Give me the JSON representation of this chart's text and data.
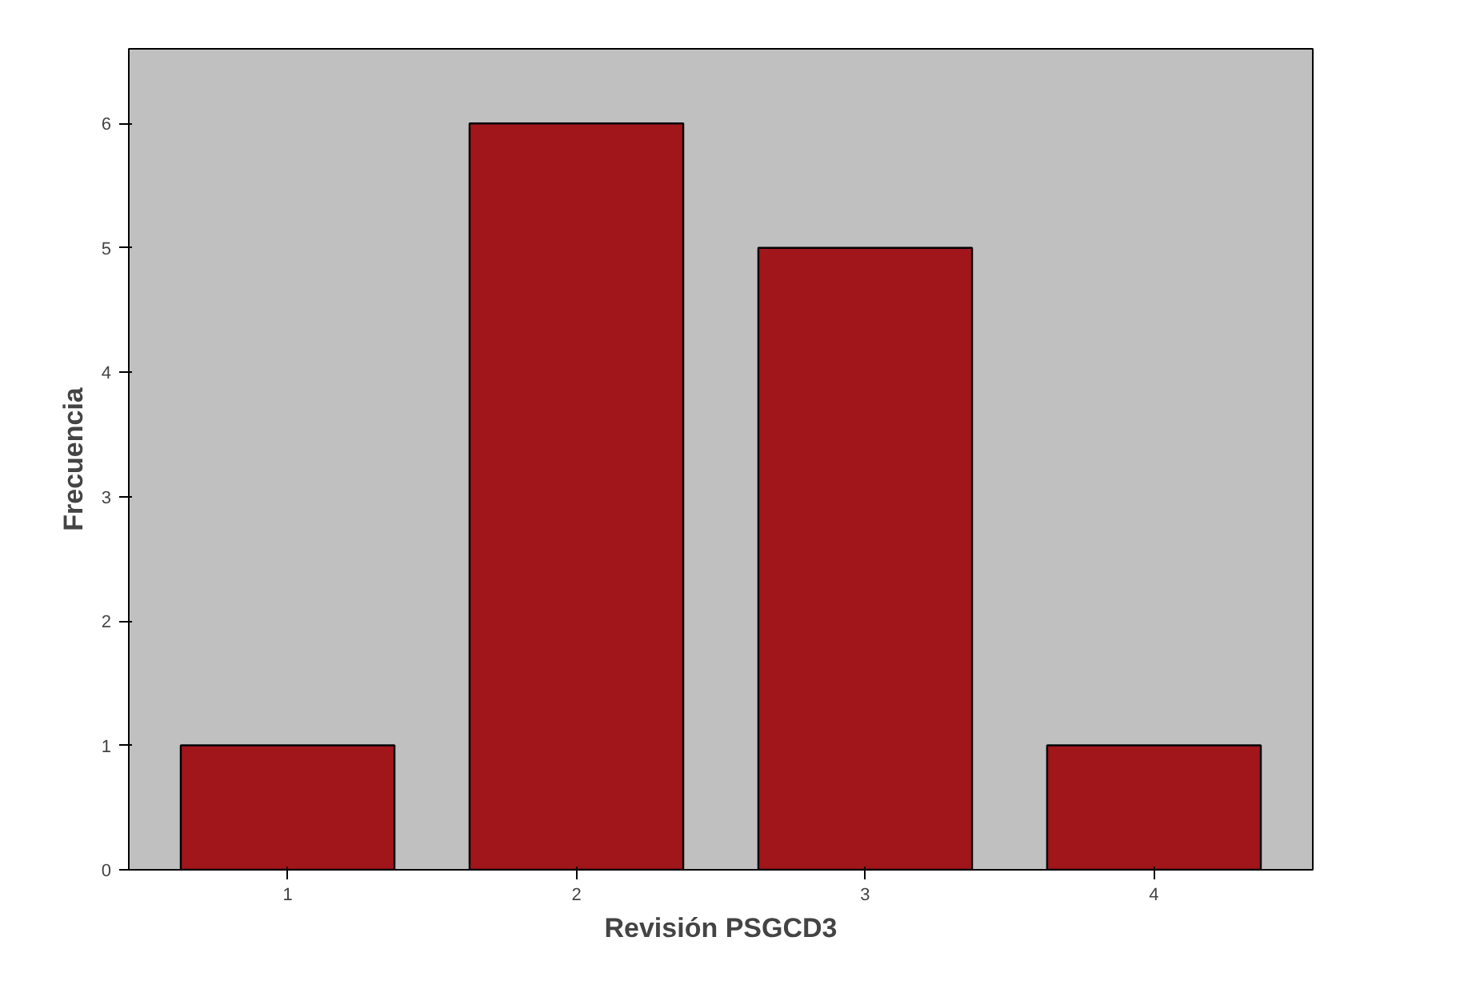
{
  "chart_data": {
    "type": "bar",
    "xlabel": "Revisión PSGCD3",
    "ylabel": "Frecuencia",
    "categories": [
      "1",
      "2",
      "3",
      "4"
    ],
    "values": [
      1,
      6,
      5,
      1
    ],
    "color": "#a0161b",
    "ylim": [
      0,
      6.6
    ],
    "yticks": [
      0,
      1,
      2,
      3,
      4,
      5,
      6
    ],
    "grid": false
  }
}
